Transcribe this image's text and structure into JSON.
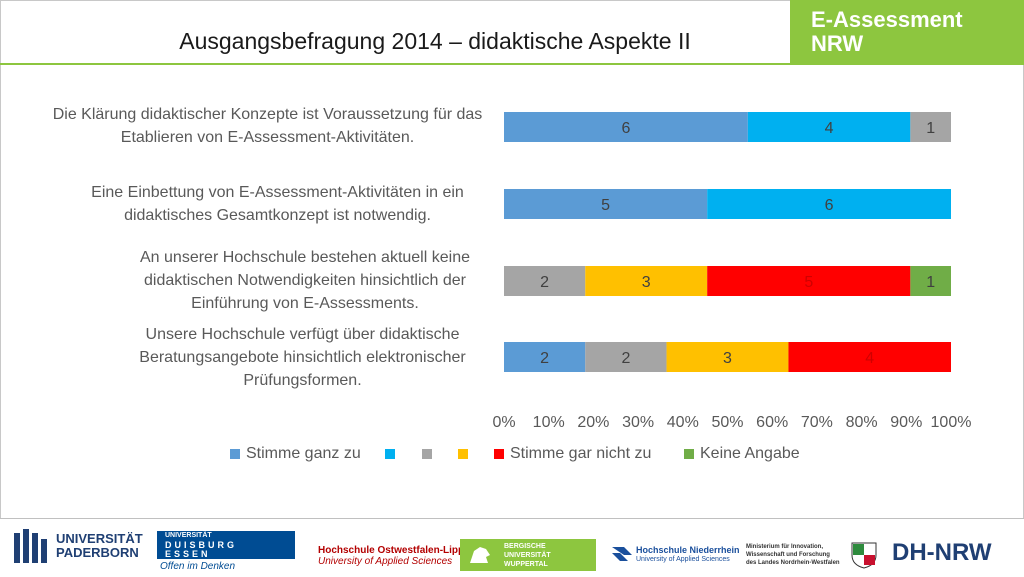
{
  "header": {
    "title": "Ausgangsbefragung 2014 – didaktische Aspekte II",
    "brand_line1": "E-Assessment",
    "brand_line2": "NRW",
    "accent": "#8dc63f"
  },
  "chart_data": {
    "type": "bar",
    "orientation": "horizontal-stacked-100",
    "categories": [
      "Die Klärung didaktischer Konzepte ist Voraussetzung für das Etablieren von E-Assessment-Aktivitäten.",
      "Eine Einbettung von E-Assessment-Aktivitäten in ein didaktisches Gesamtkonzept ist notwendig.",
      "An unserer Hochschule bestehen aktuell keine didaktischen Notwendigkeiten hinsichtlich der Einführung von E-Assessments.",
      "Unsere Hochschule verfügt über didaktische Beratungsangebote hinsichtlich elektronischer Prüfungsformen."
    ],
    "series": [
      {
        "name": "Stimme ganz zu",
        "color": "#5b9bd5",
        "values": [
          6,
          5,
          0,
          2
        ]
      },
      {
        "name": "",
        "color": "#00b0f0",
        "values": [
          4,
          6,
          0,
          0
        ]
      },
      {
        "name": "",
        "color": "#a5a5a5",
        "values": [
          1,
          0,
          2,
          2
        ]
      },
      {
        "name": "",
        "color": "#ffc000",
        "values": [
          0,
          0,
          3,
          3
        ]
      },
      {
        "name": "Stimme gar nicht zu",
        "color": "#ff0000",
        "values": [
          0,
          0,
          5,
          4
        ]
      },
      {
        "name": "Keine Angabe",
        "color": "#70ad47",
        "values": [
          0,
          0,
          1,
          0
        ]
      }
    ],
    "xticks": [
      "0%",
      "10%",
      "20%",
      "30%",
      "40%",
      "50%",
      "60%",
      "70%",
      "80%",
      "90%",
      "100%"
    ],
    "xlim": [
      0,
      100
    ],
    "grid": false,
    "legend_position": "bottom"
  },
  "footer": {
    "logos": {
      "paderborn_1": "UNIVERSITÄT",
      "paderborn_2": "PADERBORN",
      "due_1": "UNIVERSITÄT",
      "due_2": "DUISBURG",
      "due_3": "ESSEN",
      "due_4": "Offen im Denken",
      "owl_1": "Hochschule Ostwestfalen-Lippe",
      "owl_2": "University of Applied Sciences",
      "wup_1": "BERGISCHE",
      "wup_2": "UNIVERSITÄT",
      "wup_3": "WUPPERTAL",
      "hn_1": "Hochschule Niederrhein",
      "hn_2": "University of Applied Sciences",
      "min_1": "Ministerium für Innovation,",
      "min_2": "Wissenschaft und Forschung",
      "min_3": "des Landes Nordrhein-Westfalen",
      "dhnrw": "DH-NRW"
    }
  }
}
